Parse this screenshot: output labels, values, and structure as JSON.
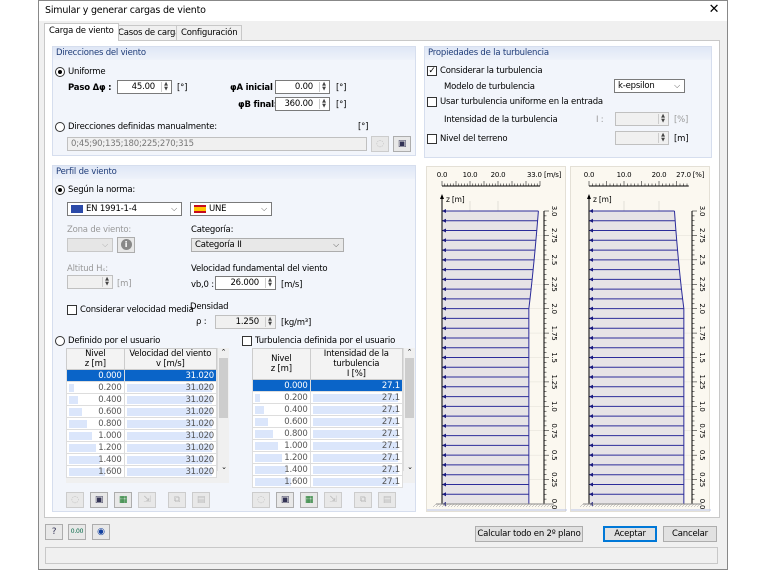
{
  "window": {
    "title": "Simular y generar cargas de viento",
    "close_icon": "close-icon"
  },
  "tabs": [
    {
      "label": "Carga de viento",
      "active": true
    },
    {
      "label": "Casos de carga"
    },
    {
      "label": "Configuración"
    }
  ],
  "directions": {
    "header": "Direcciones del viento",
    "uniform_label": "Uniforme",
    "uniform_selected": true,
    "step_label": "Paso Δφ :",
    "step_value": "45.00",
    "step_unit": "[°]",
    "start_label": "φA inicial :",
    "start_value": "0.00",
    "start_unit": "[°]",
    "end_label": "φB final:",
    "end_value": "360.00",
    "end_unit": "[°]",
    "manual_label": "Direcciones definidas manualmente:",
    "manual_unit": "[°]",
    "manual_value": "0;45;90;135;180;225;270;315"
  },
  "turbulence": {
    "header": "Propiedades de la turbulencia",
    "consider_label": "Considerar la turbulencia",
    "consider_checked": true,
    "model_label": "Modelo de turbulencia",
    "model_value": "k-epsilon",
    "uniform_label": "Usar turbulencia uniforme en la entrada",
    "uniform_checked": false,
    "intensity_label": "Intensidad de la turbulencia",
    "intensity_symbol": "I :",
    "intensity_value": "",
    "intensity_unit": "[%]",
    "terrain_label": "Nivel del terreno",
    "terrain_checked": false,
    "terrain_value": "",
    "terrain_unit": "[m]"
  },
  "profile": {
    "header": "Perfil de viento",
    "norm_label": "Según la norma:",
    "norm_selected": true,
    "code_value": "EN 1991-1-4",
    "annex_value": "UNE",
    "zone_label": "Zona de viento:",
    "zone_value": "",
    "category_label": "Categoría:",
    "category_value": "Categoría II",
    "altitude_label": "Altitud Hₛ:",
    "altitude_value": "",
    "altitude_unit": "[m]",
    "vb_label": "Velocidad fundamental del viento",
    "vb_symbol": "vb,0 :",
    "vb_value": "26.000",
    "vb_unit": "[m/s]",
    "mean_label": "Considerar velocidad media",
    "mean_checked": false,
    "density_label": "Densidad",
    "density_symbol": "ρ :",
    "density_value": "1.250",
    "density_unit": "[kg/m³]",
    "user_label": "Definido por el usuario",
    "user_selected": false,
    "user_turb_label": "Turbulencia definida por el usuario",
    "user_turb_checked": false
  },
  "table_velocity": {
    "headers": [
      [
        "Nivel",
        "z [m]"
      ],
      [
        "Velocidad del viento",
        "v [m/s]"
      ]
    ],
    "rows": [
      [
        "0.000",
        "31.020"
      ],
      [
        "0.200",
        "31.020"
      ],
      [
        "0.400",
        "31.020"
      ],
      [
        "0.600",
        "31.020"
      ],
      [
        "0.800",
        "31.020"
      ],
      [
        "1.000",
        "31.020"
      ],
      [
        "1.200",
        "31.020"
      ],
      [
        "1.400",
        "31.020"
      ],
      [
        "1.600",
        "31.020"
      ]
    ],
    "selected_row": 0
  },
  "table_turbulence": {
    "headers": [
      [
        "Nivel",
        "z [m]"
      ],
      [
        "Intensidad de la turbulencia",
        "I [%]"
      ]
    ],
    "rows": [
      [
        "0.000",
        "27.1"
      ],
      [
        "0.200",
        "27.1"
      ],
      [
        "0.400",
        "27.1"
      ],
      [
        "0.600",
        "27.1"
      ],
      [
        "0.800",
        "27.1"
      ],
      [
        "1.000",
        "27.1"
      ],
      [
        "1.200",
        "27.1"
      ],
      [
        "1.400",
        "27.1"
      ],
      [
        "1.600",
        "27.1"
      ]
    ],
    "selected_row": 0
  },
  "table_toolbar_icons": [
    "open-icon",
    "save-icon",
    "excel-import-icon",
    "export-icon",
    "copy-icon",
    "table-icon"
  ],
  "footer": {
    "icons": [
      "help-icon",
      "units-icon",
      "view-icon"
    ],
    "calc_label": "Calcular todo en 2º plano",
    "ok_label": "Aceptar",
    "cancel_label": "Cancelar"
  },
  "chart_data": [
    {
      "type": "bar",
      "orientation": "horizontal",
      "x_unit": "[m/s]",
      "y_label": "z [m]",
      "x_ticks": [
        "0.0",
        "10.0",
        "20.0",
        "33.0"
      ],
      "y_ticks": [
        "0.0",
        "0.25",
        "0.5",
        "0.75",
        "1.0",
        "1.25",
        "1.5",
        "1.75",
        "2.0",
        "2.25",
        "2.5",
        "2.75",
        "3.0"
      ],
      "z": [
        0,
        0.1,
        0.2,
        0.3,
        0.4,
        0.5,
        0.6,
        0.7,
        0.8,
        0.9,
        1.0,
        1.1,
        1.2,
        1.3,
        1.4,
        1.5,
        1.6,
        1.7,
        1.8,
        1.9,
        2.0,
        2.1,
        2.2,
        2.3,
        2.4,
        2.5,
        2.6,
        2.7,
        2.8,
        2.9,
        3.0
      ],
      "values": [
        31.02,
        31.02,
        31.02,
        31.02,
        31.02,
        31.02,
        31.02,
        31.02,
        31.02,
        31.02,
        31.02,
        31.02,
        31.02,
        31.02,
        31.02,
        31.02,
        31.02,
        31.02,
        31.02,
        31.02,
        31.02,
        31.43,
        31.82,
        32.2,
        32.55,
        32.9,
        33.23,
        33.54,
        33.85,
        34.14,
        34.43
      ]
    },
    {
      "type": "bar",
      "orientation": "horizontal",
      "x_unit": "[%]",
      "y_label": "z [m]",
      "x_ticks": [
        "0.0",
        "10.0",
        "20.0",
        "27.0"
      ],
      "y_ticks": [
        "0.0",
        "0.25",
        "0.5",
        "0.75",
        "1.0",
        "1.25",
        "1.5",
        "1.75",
        "2.0",
        "2.25",
        "2.5",
        "2.75",
        "3.0"
      ],
      "z": [
        0,
        0.1,
        0.2,
        0.3,
        0.4,
        0.5,
        0.6,
        0.7,
        0.8,
        0.9,
        1.0,
        1.1,
        1.2,
        1.3,
        1.4,
        1.5,
        1.6,
        1.7,
        1.8,
        1.9,
        2.0,
        2.1,
        2.2,
        2.3,
        2.4,
        2.5,
        2.6,
        2.7,
        2.8,
        2.9,
        3.0
      ],
      "values": [
        27.1,
        27.1,
        27.1,
        27.1,
        27.1,
        27.1,
        27.1,
        27.1,
        27.1,
        27.1,
        27.1,
        27.1,
        27.1,
        27.1,
        27.1,
        27.1,
        27.1,
        27.1,
        27.1,
        27.1,
        27.1,
        26.75,
        26.42,
        26.11,
        25.82,
        25.55,
        25.3,
        25.06,
        24.83,
        24.62,
        24.42
      ]
    }
  ]
}
